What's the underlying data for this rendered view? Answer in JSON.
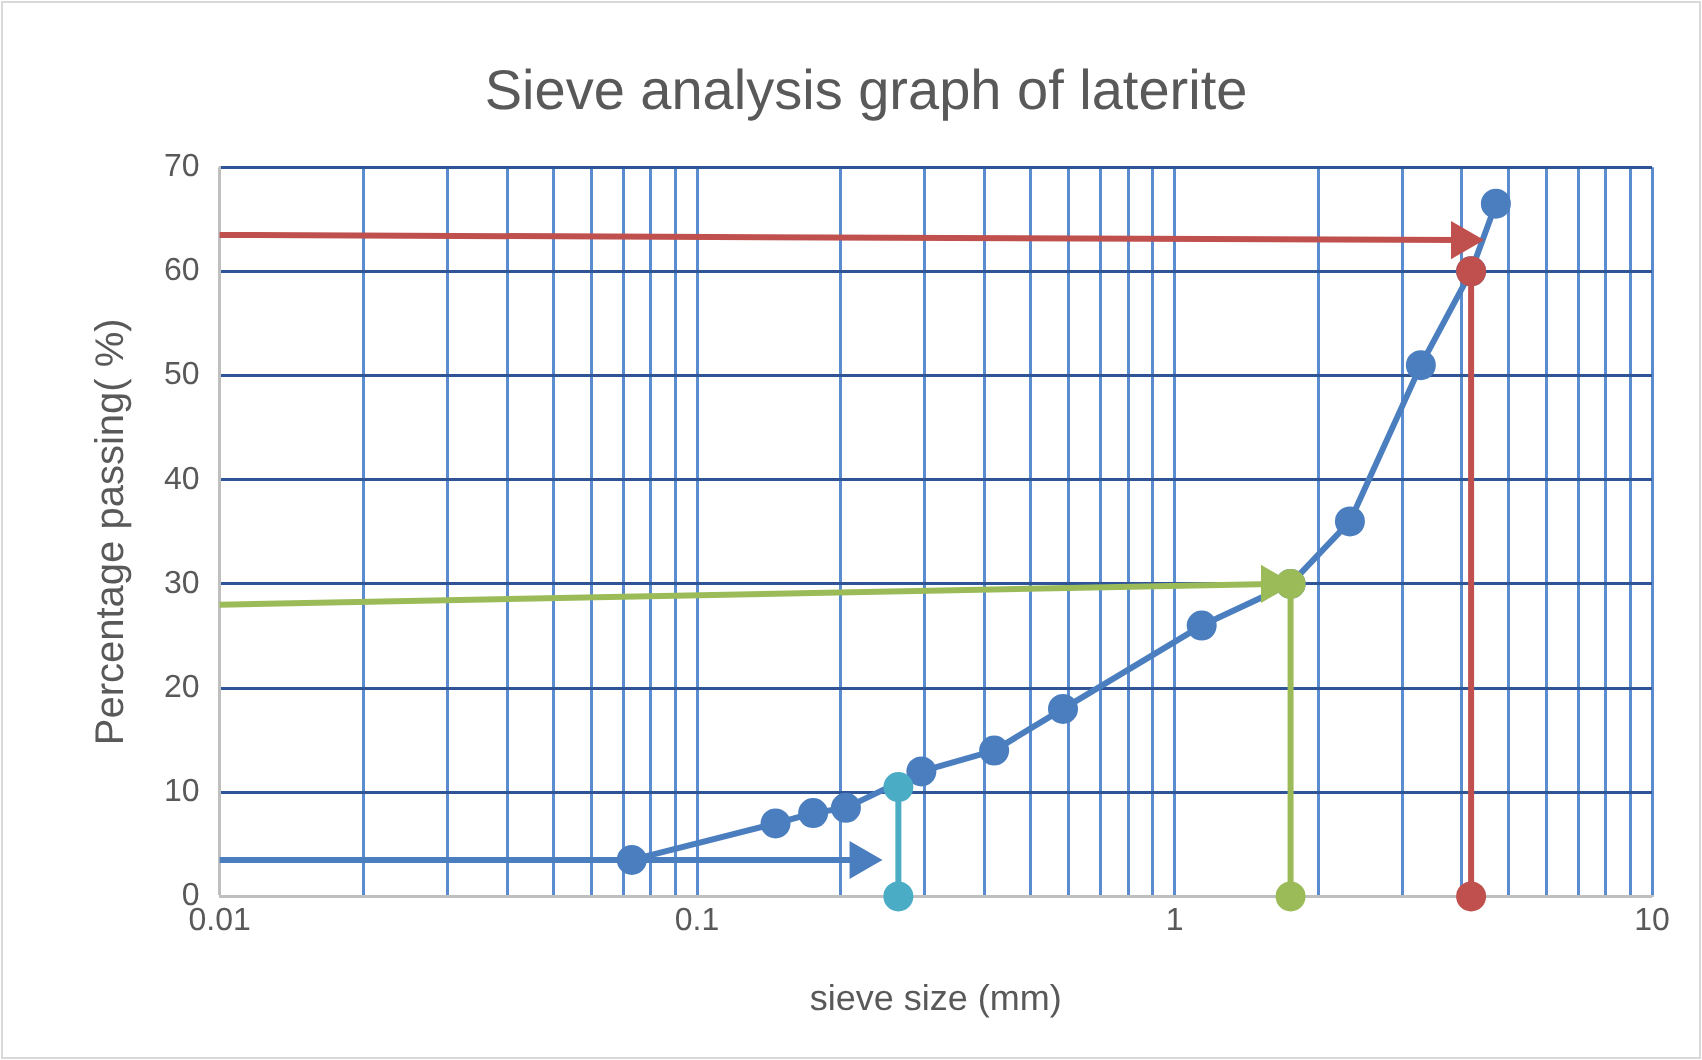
{
  "chart_data": {
    "type": "scatter",
    "title": "Sieve analysis graph of laterite",
    "xlabel": "sieve size (mm)",
    "ylabel": "Percentage passing( %)",
    "log": "x",
    "grid": true,
    "legend": false,
    "xlim": [
      0.01,
      10
    ],
    "ylim": [
      0,
      70
    ],
    "xticks": [
      0.01,
      {
        "value": 0.02,
        "label": null
      },
      {
        "value": 0.03,
        "label": null
      },
      {
        "value": 0.04,
        "label": null
      },
      {
        "value": 0.05,
        "label": null
      },
      {
        "value": 0.06,
        "label": null
      },
      {
        "value": 0.07,
        "label": null
      },
      {
        "value": 0.08,
        "label": null
      },
      {
        "value": 0.09,
        "label": null
      },
      0.1,
      {
        "value": 0.2,
        "label": null
      },
      {
        "value": 0.3,
        "label": null
      },
      {
        "value": 0.4,
        "label": null
      },
      {
        "value": 0.5,
        "label": null
      },
      {
        "value": 0.6,
        "label": null
      },
      {
        "value": 0.7,
        "label": null
      },
      {
        "value": 0.8,
        "label": null
      },
      {
        "value": 0.9,
        "label": null
      },
      1,
      {
        "value": 2,
        "label": null
      },
      {
        "value": 3,
        "label": null
      },
      {
        "value": 4,
        "label": null
      },
      {
        "value": 5,
        "label": null
      },
      {
        "value": 6,
        "label": null
      },
      {
        "value": 7,
        "label": null
      },
      {
        "value": 8,
        "label": null
      },
      {
        "value": 9,
        "label": null
      },
      10
    ],
    "yticks": [
      0,
      10,
      20,
      30,
      40,
      50,
      60,
      70
    ],
    "series": [
      {
        "type": "line",
        "marker": "circle",
        "color": "#4a7ebf",
        "x": [
          0.073,
          0.146,
          0.175,
          0.205,
          0.295,
          0.419,
          0.584,
          1.14,
          1.75,
          2.33,
          3.28,
          4.18,
          4.71
        ],
        "values": [
          3.5,
          7,
          8,
          8.5,
          12,
          14,
          18,
          26,
          30,
          36,
          51,
          60,
          66.5
        ]
      },
      {
        "type": "line",
        "marker": "triangle",
        "color": "#4a7ebf",
        "x": [
          0.01,
          0.22
        ],
        "values": [
          3.5,
          3.5
        ]
      },
      {
        "type": "line",
        "marker": "circle",
        "color": "#4bacc6",
        "x": [
          0.264,
          0.264
        ],
        "values": [
          10.5,
          0
        ]
      },
      {
        "type": "line",
        "marker": "triangle",
        "color": "#9bbb59",
        "x": [
          0.01,
          1.6
        ],
        "values": [
          28,
          30
        ]
      },
      {
        "type": "line",
        "marker": "circle",
        "color": "#9bbb59",
        "x": [
          1.75,
          1.75
        ],
        "values": [
          30,
          0
        ]
      },
      {
        "type": "line",
        "marker": "triangle",
        "color": "#c0504d",
        "x": [
          0.01,
          4.0
        ],
        "values": [
          63.5,
          63
        ]
      },
      {
        "type": "line",
        "marker": "circle",
        "color": "#c0504d",
        "x": [
          4.18,
          4.18
        ],
        "values": [
          60,
          0
        ]
      }
    ]
  }
}
